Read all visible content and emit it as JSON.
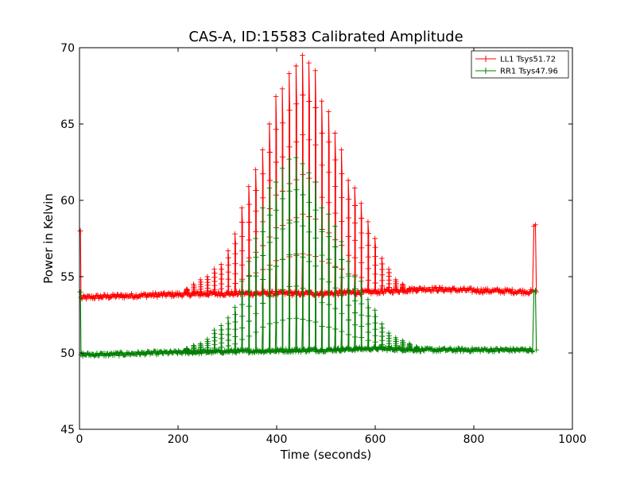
{
  "chart_data": {
    "type": "line",
    "title": "CAS-A, ID:15583 Calibrated Amplitude",
    "xlabel": "Time (seconds)",
    "ylabel": "Power in Kelvin",
    "xlim": [
      0,
      1000
    ],
    "ylim": [
      45,
      70
    ],
    "xticks": [
      0,
      200,
      400,
      600,
      800,
      1000
    ],
    "yticks": [
      45,
      50,
      55,
      60,
      65,
      70
    ],
    "grid": false,
    "legend_position": "top-right",
    "marker": "+",
    "series": [
      {
        "name": "LL1 Tsys51.72",
        "color": "#ff0000",
        "baseline": [
          [
            0,
            53.6
          ],
          [
            50,
            53.7
          ],
          [
            150,
            53.8
          ],
          [
            300,
            53.9
          ],
          [
            500,
            53.9
          ],
          [
            600,
            54.0
          ],
          [
            700,
            54.2
          ],
          [
            800,
            54.1
          ],
          [
            925,
            54.0
          ]
        ],
        "baseline_noise": 0.15,
        "endpoint_spikes": [
          [
            1,
            58.0
          ],
          [
            2,
            58.0
          ],
          [
            922,
            58.3
          ],
          [
            925,
            58.4
          ]
        ],
        "peaks_x": [
          218,
          232,
          246,
          260,
          274,
          288,
          302,
          316,
          330,
          344,
          358,
          372,
          386,
          399,
          412,
          426,
          440,
          453,
          466,
          479,
          492,
          506,
          519,
          532,
          546,
          559,
          572,
          586,
          600,
          614,
          628,
          642,
          656,
          670,
          684
        ],
        "peaks_y": [
          54.2,
          54.5,
          54.8,
          55.0,
          55.5,
          55.8,
          56.7,
          57.8,
          59.5,
          60.9,
          62.0,
          63.3,
          65.0,
          66.8,
          67.3,
          68.3,
          68.8,
          69.5,
          69.0,
          68.5,
          66.5,
          65.8,
          64.4,
          63.3,
          61.3,
          60.8,
          59.8,
          58.6,
          57.5,
          56.2,
          55.5,
          54.8,
          54.5,
          54.2,
          54.1
        ]
      },
      {
        "name": "RR1 Tsys47.96",
        "color": "#007f00",
        "baseline": [
          [
            0,
            49.9
          ],
          [
            50,
            49.9
          ],
          [
            150,
            50.0
          ],
          [
            300,
            50.1
          ],
          [
            500,
            50.2
          ],
          [
            600,
            50.3
          ],
          [
            700,
            50.2
          ],
          [
            800,
            50.2
          ],
          [
            925,
            50.2
          ]
        ],
        "baseline_noise": 0.12,
        "endpoint_spikes": [
          [
            1,
            54.0
          ],
          [
            2,
            54.0
          ],
          [
            922,
            54.0
          ],
          [
            925,
            54.1
          ]
        ],
        "peaks_x": [
          218,
          232,
          246,
          260,
          274,
          288,
          302,
          316,
          330,
          344,
          358,
          372,
          386,
          399,
          412,
          426,
          440,
          453,
          466,
          479,
          492,
          506,
          519,
          532,
          546,
          559,
          572,
          586,
          600,
          614,
          628,
          642,
          656,
          670,
          684
        ],
        "peaks_y": [
          50.3,
          50.5,
          50.6,
          50.9,
          51.5,
          51.8,
          52.3,
          53.0,
          54.7,
          56.0,
          57.5,
          59.5,
          60.8,
          61.2,
          62.1,
          62.7,
          62.8,
          62.4,
          61.8,
          61.2,
          59.5,
          59.1,
          58.3,
          57.3,
          56.0,
          55.0,
          54.7,
          53.5,
          52.8,
          51.9,
          51.3,
          51.0,
          50.8,
          50.6,
          50.4
        ]
      }
    ]
  }
}
